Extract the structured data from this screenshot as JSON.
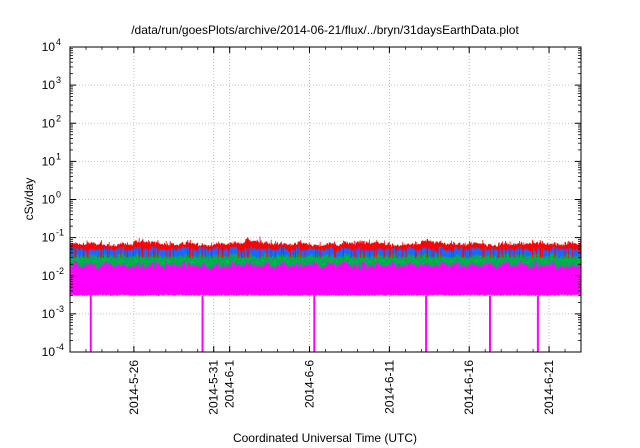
{
  "chart_data": {
    "type": "line",
    "title": "/data/run/goesPlots/archive/2014-06-21/flux/../bryn/31daysEarthData.plot",
    "xlabel": "Coordinated Universal Time (UTC)",
    "ylabel": "cSv/day",
    "x_range": [
      "2014-05-22",
      "2014-06-23"
    ],
    "x_ticks": [
      "2014-5-26",
      "2014-5-31",
      "2014-6-1",
      "2014-6-6",
      "2014-6-11",
      "2014-6-16",
      "2014-6-21"
    ],
    "y_scale": "log",
    "ylim": [
      0.0001,
      10000
    ],
    "y_ticks": [
      {
        "base": "10",
        "exp": "-4",
        "value": 0.0001
      },
      {
        "base": "10",
        "exp": "-3",
        "value": 0.001
      },
      {
        "base": "10",
        "exp": "-2",
        "value": 0.01
      },
      {
        "base": "10",
        "exp": "-1",
        "value": 0.1
      },
      {
        "base": "10",
        "exp": "0",
        "value": 1
      },
      {
        "base": "10",
        "exp": "1",
        "value": 10
      },
      {
        "base": "10",
        "exp": "2",
        "value": 100
      },
      {
        "base": "10",
        "exp": "3",
        "value": 1000
      },
      {
        "base": "10",
        "exp": "4",
        "value": 10000
      }
    ],
    "grid": true,
    "legend": "none",
    "series": [
      {
        "color": "#ff0000",
        "typical_range": [
          0.03,
          0.09
        ],
        "approx_daily_peak": [
          0.075,
          0.08,
          0.07,
          0.075,
          0.09,
          0.08,
          0.075,
          0.08,
          0.07,
          0.075,
          0.08,
          0.1,
          0.08,
          0.075,
          0.08,
          0.07,
          0.075,
          0.08,
          0.085,
          0.08,
          0.07,
          0.075,
          0.09,
          0.08,
          0.075,
          0.08,
          0.07,
          0.075,
          0.08,
          0.08,
          0.075,
          0.08
        ]
      },
      {
        "color": "#1e64ff",
        "typical_range": [
          0.015,
          0.06
        ]
      },
      {
        "color": "#00b050",
        "typical_range": [
          0.01,
          0.04
        ]
      },
      {
        "color": "#ff00ff",
        "typical_range": [
          0.003,
          0.025
        ],
        "dropouts": [
          "2014-05-23",
          "2014-05-30",
          "2014-06-06",
          "2014-06-13",
          "2014-06-17",
          "2014-06-20"
        ]
      }
    ]
  }
}
